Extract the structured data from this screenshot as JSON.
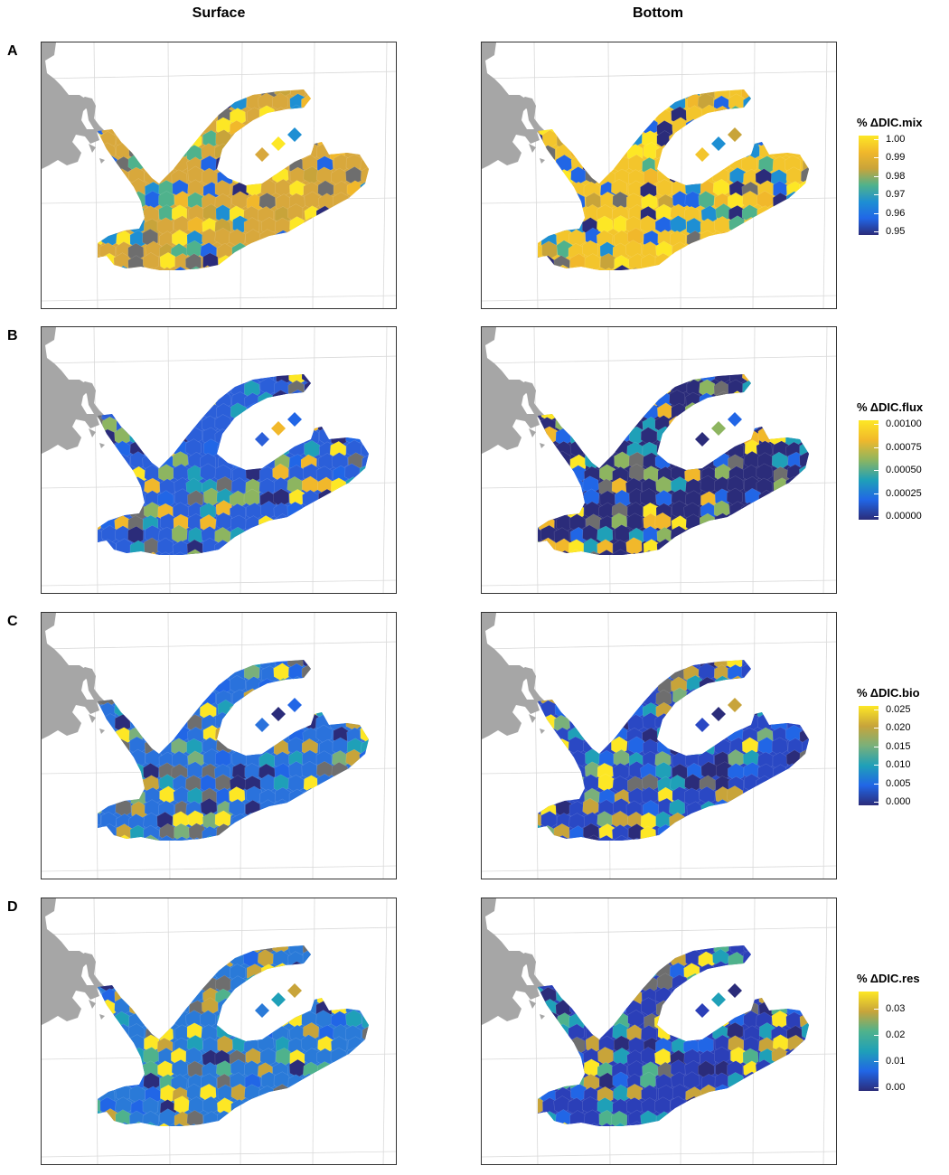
{
  "columns": [
    "Surface",
    "Bottom"
  ],
  "chart_data": [
    {
      "type": "map",
      "row_label": "A",
      "variable": "% ΔDIC.mix",
      "legend_ticks": [
        "1.00",
        "0.99",
        "0.98",
        "0.97",
        "0.96",
        "0.95"
      ],
      "range": [
        0.95,
        1.0
      ],
      "colorscale": [
        "#fde725",
        "#f1b82b",
        "#c8a43a",
        "#4fb28c",
        "#1e8fd3",
        "#2166e6",
        "#2b2c7a"
      ],
      "panels": [
        {
          "name": "Surface",
          "dominant_color": "#d8a83c"
        },
        {
          "name": "Bottom",
          "dominant_color": "#f3c52c"
        }
      ]
    },
    {
      "type": "map",
      "row_label": "B",
      "variable": "% ΔDIC.flux",
      "legend_ticks": [
        "0.00100",
        "0.00075",
        "0.00050",
        "0.00025",
        "0.00000"
      ],
      "range": [
        0,
        0.001
      ],
      "colorscale": [
        "#fde725",
        "#f1b82b",
        "#8db560",
        "#1fa0b8",
        "#2166e6",
        "#2b2c7a"
      ],
      "panels": [
        {
          "name": "Surface",
          "dominant_color": "#2b5fd9"
        },
        {
          "name": "Bottom",
          "dominant_color": "#2b2c7a"
        }
      ]
    },
    {
      "type": "map",
      "row_label": "C",
      "variable": "% ΔDIC.bio",
      "legend_ticks": [
        "0.025",
        "0.020",
        "0.015",
        "0.010",
        "0.005",
        "0.000"
      ],
      "range": [
        0,
        0.025
      ],
      "colorscale": [
        "#fde725",
        "#c8a43a",
        "#7ab07a",
        "#1fa0b8",
        "#2166e6",
        "#2b2c7a"
      ],
      "panels": [
        {
          "name": "Surface",
          "dominant_color": "#2a72dc"
        },
        {
          "name": "Bottom",
          "dominant_color": "#2a48c4"
        }
      ]
    },
    {
      "type": "map",
      "row_label": "D",
      "variable": "% ΔDIC.res",
      "legend_ticks": [
        "0.03",
        "0.02",
        "0.01",
        "0.00"
      ],
      "range": [
        0,
        0.035
      ],
      "colorscale": [
        "#fde725",
        "#c8a43a",
        "#4fb28c",
        "#1fa0b8",
        "#2166e6",
        "#2b2c7a"
      ],
      "panels": [
        {
          "name": "Surface",
          "dominant_color": "#2a7ad8"
        },
        {
          "name": "Bottom",
          "dominant_color": "#2b3fb8"
        }
      ]
    }
  ]
}
